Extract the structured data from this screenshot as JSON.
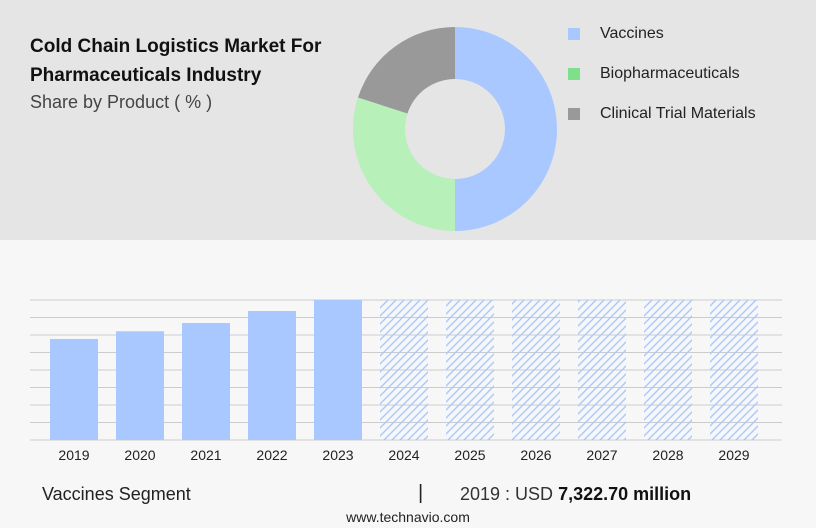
{
  "header": {
    "title": "Cold Chain Logistics Market For Pharmaceuticals Industry",
    "subtitle": "Share by Product ( % )"
  },
  "legend": [
    {
      "label": "Vaccines",
      "color": "#a8c8ff"
    },
    {
      "label": "Biopharmaceuticals",
      "color": "#7ee08a"
    },
    {
      "label": "Clinical Trial Materials",
      "color": "#999999"
    }
  ],
  "chart_data": [
    {
      "type": "pie",
      "style": "donut",
      "categories": [
        "Vaccines",
        "Biopharmaceuticals",
        "Clinical Trial Materials"
      ],
      "values": [
        50,
        30,
        20
      ],
      "colors": [
        "#a8c8ff",
        "#b7f0b9",
        "#999999"
      ]
    },
    {
      "type": "bar",
      "categories": [
        "2019",
        "2020",
        "2021",
        "2022",
        "2023",
        "2024",
        "2025",
        "2026",
        "2027",
        "2028",
        "2029"
      ],
      "values": [
        7322.7,
        7880,
        8480,
        9350,
        10150,
        10150,
        10150,
        10150,
        10150,
        10150,
        10150
      ],
      "forecast_from": "2024",
      "ylim": [
        0,
        10150
      ],
      "grid": true,
      "color": "#a8c8ff"
    }
  ],
  "footer": {
    "segment": "Vaccines Segment",
    "separator": "|",
    "year_label": "2019 : USD",
    "value": "7,322.70 million",
    "website": "www.technavio.com"
  }
}
